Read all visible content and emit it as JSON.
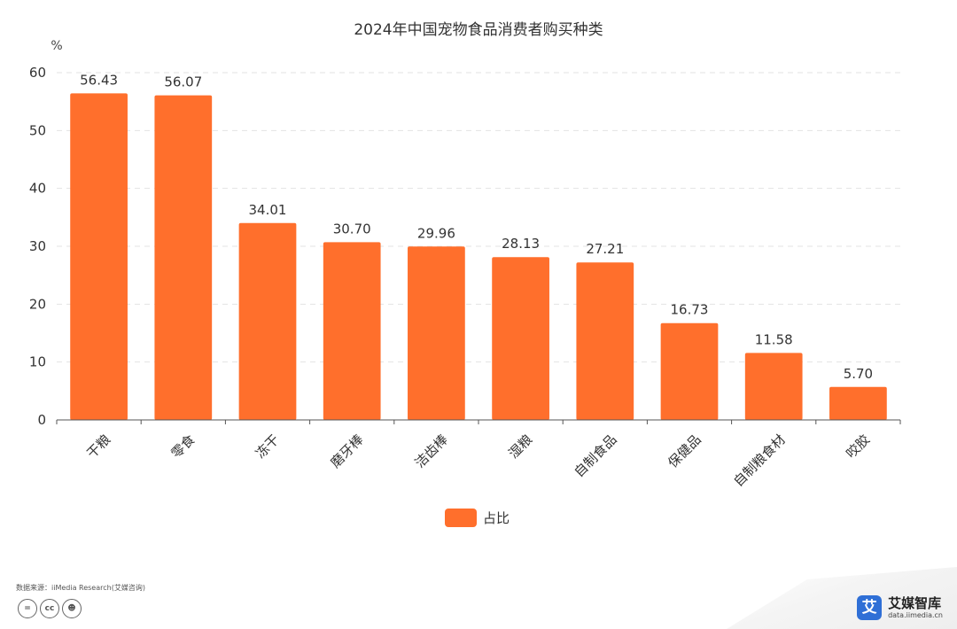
{
  "chart_data": {
    "type": "bar",
    "title": "2024年中国宠物食品消费者购买种类",
    "ylabel": "%",
    "xlabel": "",
    "categories": [
      "干粮",
      "零食",
      "冻干",
      "磨牙棒",
      "洁齿棒",
      "湿粮",
      "自制食品",
      "保健品",
      "自制粮食材",
      "咬胶"
    ],
    "series": [
      {
        "name": "占比",
        "values": [
          56.43,
          56.07,
          34.01,
          30.7,
          29.96,
          28.13,
          27.21,
          16.73,
          11.58,
          5.7
        ]
      }
    ],
    "data_labels": [
      "56.43",
      "56.07",
      "34.01",
      "30.70",
      "29.96",
      "28.13",
      "27.21",
      "16.73",
      "11.58",
      "5.70"
    ],
    "ylim": [
      0,
      60
    ],
    "yticks": [
      0,
      10,
      20,
      30,
      40,
      50,
      60
    ],
    "grid": true,
    "legend_position": "bottom",
    "colors": {
      "bar": "#ff6f2c",
      "grid": "#e3e3e3",
      "axis": "#555555"
    }
  },
  "footer": {
    "source": "数据来源：iiMedia Research(艾媒咨询)",
    "license_icons": [
      "cc-equal-icon",
      "cc-icon",
      "cc-by-icon"
    ],
    "brand_logo_char": "艾",
    "brand_name": "艾媒智库",
    "brand_url": "data.iimedia.cn"
  }
}
